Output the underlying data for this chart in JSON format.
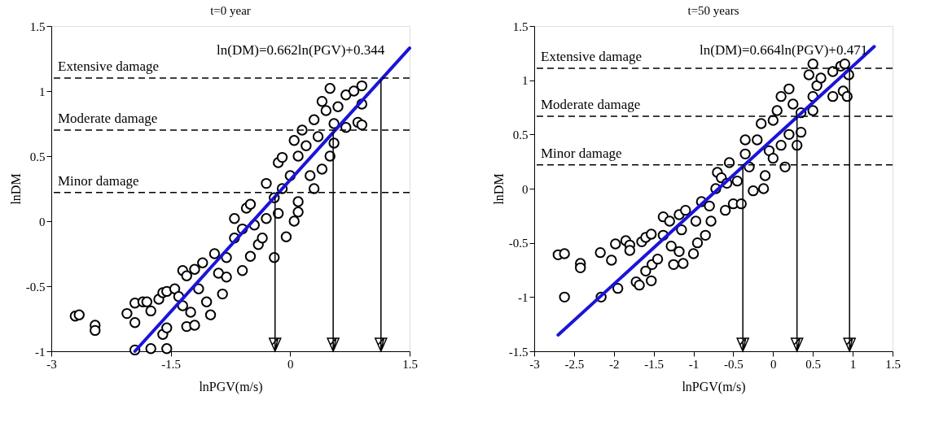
{
  "chart_data": [
    {
      "type": "scatter",
      "title": "t=0 year",
      "xlabel": "lnPGV(m/s)",
      "ylabel": "lnDM",
      "xlim": [
        -3,
        1.5
      ],
      "xticks": [
        -3,
        -1.5,
        0,
        1.5
      ],
      "ylim": [
        -1,
        1.5
      ],
      "yticks": [
        -1,
        -0.5,
        0,
        0.5,
        1,
        1.5
      ],
      "grid": false,
      "series": [
        {
          "marker": "circle",
          "color": "#000000",
          "x": [
            -2.7,
            -2.65,
            -2.45,
            -2.45,
            -2.05,
            -1.95,
            -1.95,
            -1.85,
            -1.8,
            -1.75,
            -1.65,
            -1.6,
            -1.55,
            -1.6,
            -1.55,
            -1.55,
            -1.75,
            -1.95,
            -1.45,
            -1.4,
            -1.35,
            -1.3,
            -1.2,
            -1.25,
            -1.35,
            -1.3,
            -1.2,
            -1.1,
            -1.15,
            -1.05,
            -1.0,
            -0.95,
            -0.9,
            -0.85,
            -0.8,
            -0.8,
            -0.7,
            -0.7,
            -0.6,
            -0.6,
            -0.55,
            -0.5,
            -0.5,
            -0.45,
            -0.4,
            -0.35,
            -0.3,
            -0.3,
            -0.2,
            -0.2,
            -0.15,
            -0.15,
            -0.1,
            -0.05,
            -0.1,
            0,
            0.05,
            0.05,
            0.1,
            0.1,
            0.15,
            0.1,
            0.2,
            0.25,
            0.3,
            0.3,
            0.35,
            0.4,
            0.4,
            0.45,
            0.5,
            0.5,
            0.55,
            0.6,
            0.55,
            0.7,
            0.7,
            0.8,
            0.85,
            0.9,
            0.9,
            0.9
          ],
          "values": [
            -0.73,
            -0.72,
            -0.8,
            -0.84,
            -0.71,
            -0.78,
            -0.63,
            -0.62,
            -0.62,
            -0.69,
            -0.6,
            -0.55,
            -0.54,
            -0.87,
            -0.82,
            -0.98,
            -0.98,
            -0.99,
            -0.52,
            -0.58,
            -0.65,
            -0.81,
            -0.8,
            -0.7,
            -0.38,
            -0.42,
            -0.37,
            -0.32,
            -0.52,
            -0.62,
            -0.72,
            -0.25,
            -0.4,
            -0.56,
            -0.28,
            -0.43,
            -0.13,
            0.02,
            -0.06,
            -0.38,
            0.1,
            0.13,
            -0.27,
            -0.03,
            -0.18,
            -0.13,
            0.29,
            0.02,
            0.18,
            -0.28,
            0.45,
            0.06,
            0.49,
            -0.12,
            0.25,
            0.35,
            0.62,
            0.0,
            0.5,
            0.15,
            0.7,
            0.07,
            0.58,
            0.35,
            0.78,
            0.25,
            0.65,
            0.4,
            0.92,
            0.85,
            0.5,
            1.02,
            0.75,
            0.88,
            0.6,
            0.72,
            0.97,
            1.0,
            0.76,
            1.04,
            0.9,
            0.74
          ]
        },
        {
          "type": "line",
          "color": "#1a14d9",
          "x": [
            -1.95,
            1.5
          ],
          "values": [
            -1.0,
            1.33
          ]
        }
      ],
      "ref_lines": [
        {
          "axis": "y",
          "value": 1.1,
          "label": "Extensive damage",
          "line_style": "dashed",
          "color": "#000000"
        },
        {
          "axis": "y",
          "value": 0.7,
          "label": "Moderate damage",
          "line_style": "dashed",
          "color": "#000000"
        },
        {
          "axis": "y",
          "value": 0.22,
          "label": "Minor damage",
          "line_style": "dashed",
          "color": "#000000"
        },
        {
          "axis": "x",
          "value": -0.19,
          "line_style": "solid",
          "color": "#000000"
        },
        {
          "axis": "x",
          "value": 0.54,
          "line_style": "solid",
          "color": "#000000"
        },
        {
          "axis": "x",
          "value": 1.14,
          "line_style": "solid",
          "color": "#000000"
        }
      ],
      "annotations": [
        "ln(DM)=0.662ln(PGV)+0.344"
      ]
    },
    {
      "type": "scatter",
      "title": "t=50 years",
      "xlabel": "lnPGV(m/s)",
      "ylabel": "lnDM",
      "xlim": [
        -3,
        1.5
      ],
      "xticks": [
        -3,
        -2.5,
        -2,
        -1.5,
        -1,
        -0.5,
        0,
        0.5,
        1,
        1.5
      ],
      "ylim": [
        -1.5,
        1.5
      ],
      "yticks": [
        -1.5,
        -1,
        -0.5,
        0,
        0.5,
        1,
        1.5
      ],
      "grid": false,
      "series": [
        {
          "marker": "circle",
          "color": "#000000",
          "x": [
            -2.7,
            -2.62,
            -2.62,
            -2.42,
            -2.42,
            -2.17,
            -2.16,
            -2.03,
            -1.98,
            -1.95,
            -1.85,
            -1.8,
            -1.8,
            -1.72,
            -1.68,
            -1.65,
            -1.6,
            -1.6,
            -1.53,
            -1.53,
            -1.52,
            -1.45,
            -1.38,
            -1.38,
            -1.3,
            -1.28,
            -1.25,
            -1.18,
            -1.18,
            -1.15,
            -1.13,
            -1.1,
            -1.0,
            -0.97,
            -0.95,
            -0.9,
            -0.85,
            -0.8,
            -0.78,
            -0.72,
            -0.7,
            -0.65,
            -0.6,
            -0.58,
            -0.55,
            -0.5,
            -0.45,
            -0.4,
            -0.35,
            -0.35,
            -0.3,
            -0.25,
            -0.2,
            -0.15,
            -0.12,
            -0.1,
            -0.05,
            0.0,
            0.0,
            0.05,
            0.1,
            0.1,
            0.15,
            0.2,
            0.2,
            0.25,
            0.3,
            0.35,
            0.35,
            0.45,
            0.5,
            0.5,
            0.5,
            0.55,
            0.6,
            0.75,
            0.75,
            0.85,
            0.88,
            0.9,
            0.93,
            0.95
          ],
          "values": [
            -0.61,
            -0.6,
            -1.0,
            -0.69,
            -0.73,
            -0.59,
            -1.0,
            -0.66,
            -0.51,
            -0.92,
            -0.48,
            -0.52,
            -0.57,
            -0.86,
            -0.89,
            -0.49,
            -0.45,
            -0.76,
            -0.42,
            -0.85,
            -0.7,
            -0.65,
            -0.26,
            -0.43,
            -0.3,
            -0.53,
            -0.7,
            -0.24,
            -0.58,
            -0.38,
            -0.69,
            -0.2,
            -0.6,
            -0.3,
            -0.5,
            -0.12,
            -0.43,
            -0.16,
            -0.3,
            0.0,
            0.15,
            0.1,
            -0.2,
            0.05,
            0.24,
            -0.14,
            0.07,
            -0.14,
            0.32,
            0.45,
            0.2,
            -0.02,
            0.45,
            0.6,
            0.0,
            0.12,
            0.35,
            0.63,
            0.28,
            0.72,
            0.85,
            0.4,
            0.2,
            0.5,
            0.92,
            0.78,
            0.4,
            0.52,
            0.7,
            1.05,
            0.85,
            1.15,
            0.72,
            0.95,
            1.02,
            1.08,
            0.85,
            1.13,
            0.9,
            1.15,
            0.85,
            1.05
          ]
        },
        {
          "type": "line",
          "color": "#1a14d9",
          "x": [
            -2.7,
            1.27
          ],
          "values": [
            -1.35,
            1.31
          ]
        }
      ],
      "ref_lines": [
        {
          "axis": "y",
          "value": 1.11,
          "label": "Extensive damage",
          "line_style": "dashed",
          "color": "#000000"
        },
        {
          "axis": "y",
          "value": 0.667,
          "label": "Moderate damage",
          "line_style": "dashed",
          "color": "#000000"
        },
        {
          "axis": "y",
          "value": 0.22,
          "label": "Minor damage",
          "line_style": "dashed",
          "color": "#000000"
        },
        {
          "axis": "x",
          "value": -0.38,
          "line_style": "solid",
          "color": "#000000"
        },
        {
          "axis": "x",
          "value": 0.3,
          "line_style": "solid",
          "color": "#000000"
        },
        {
          "axis": "x",
          "value": 0.96,
          "line_style": "solid",
          "color": "#000000"
        }
      ],
      "annotations": [
        "ln(DM)=0.664ln(PGV)+0.471"
      ]
    }
  ]
}
